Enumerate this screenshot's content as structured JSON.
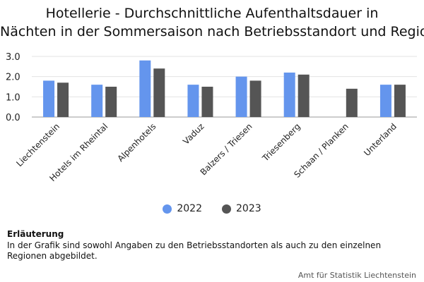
{
  "title_line1": "Hotellerie - Durchschnittliche Aufenthaltsdauer in",
  "title_line2": "Nächten in der Sommersaison nach Betriebsstandort und Region",
  "legend": [
    {
      "label": "2022",
      "color": "#6495ED"
    },
    {
      "label": "2023",
      "color": "#555555"
    }
  ],
  "note": {
    "heading": "Erläuterung",
    "text": "In der Grafik sind sowohl Angaben zu den Betriebsstandorten als auch zu den einzelnen Regionen abgebildet."
  },
  "source": "Amt für Statistik Liechtenstein",
  "chart_data": {
    "type": "bar",
    "title": "Hotellerie - Durchschnittliche Aufenthaltsdauer in Nächten in der Sommersaison nach Betriebsstandort und Region",
    "categories": [
      "Liechtenstein",
      "Hotels im Rheintal",
      "Alpenhotels",
      "Vaduz",
      "Balzers / Triesen",
      "Triesenberg",
      "Schaan / Planken",
      "Unterland"
    ],
    "series": [
      {
        "name": "2022",
        "color": "#6495ED",
        "values": [
          1.8,
          1.6,
          2.8,
          1.6,
          2.0,
          2.2,
          null,
          1.6
        ]
      },
      {
        "name": "2023",
        "color": "#555555",
        "values": [
          1.7,
          1.5,
          2.4,
          1.5,
          1.8,
          2.1,
          1.4,
          1.6
        ]
      }
    ],
    "yticks": [
      "0.0",
      "1.0",
      "2.0",
      "3.0"
    ],
    "ylim": [
      0,
      3
    ],
    "grid": true,
    "legend_position": "bottom"
  }
}
